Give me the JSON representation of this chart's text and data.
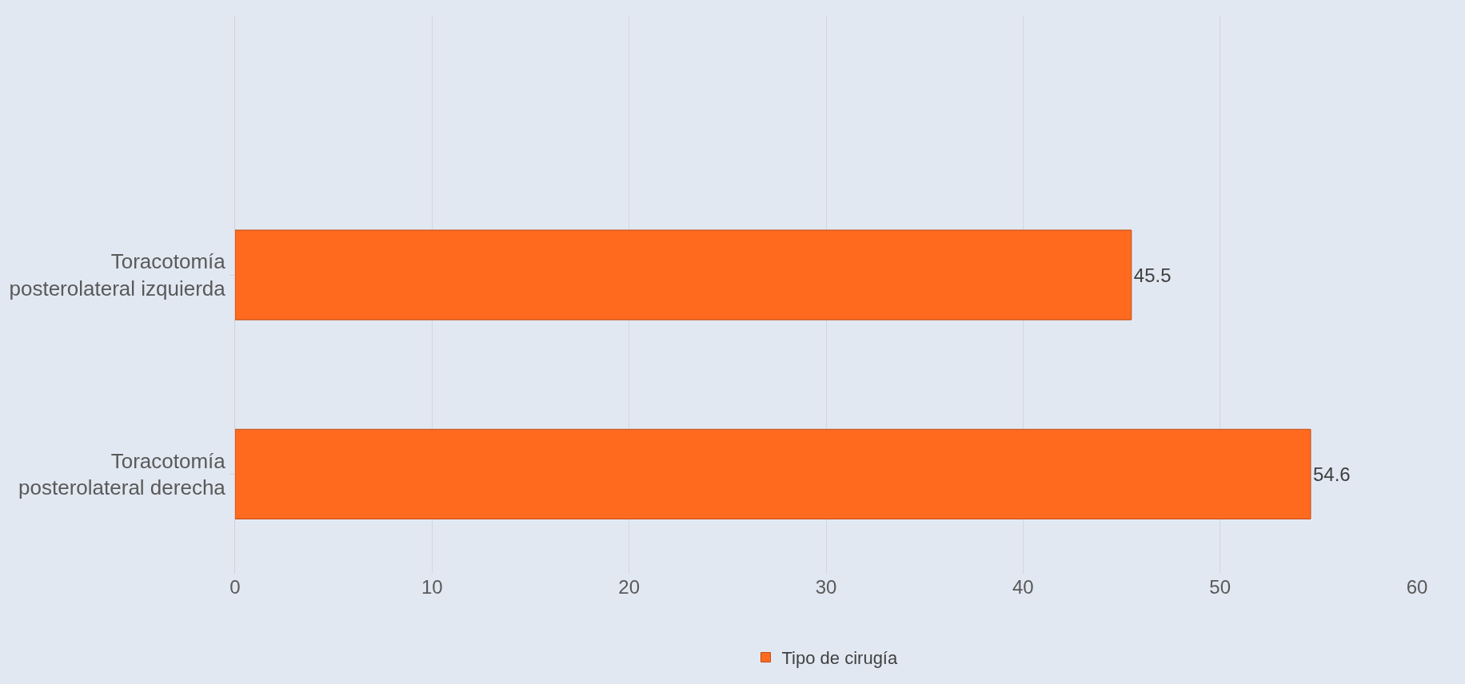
{
  "chart_data": {
    "type": "bar",
    "orientation": "horizontal",
    "categories": [
      "Toracotomía posterolateral izquierda",
      "Toracotomía posterolateral derecha"
    ],
    "series": [
      {
        "name": "Tipo de cirugía",
        "color": "#ff6a1f",
        "values": [
          45.5,
          54.6
        ]
      }
    ],
    "xlim": [
      0,
      60
    ],
    "xticks": [
      0,
      10,
      20,
      30,
      40,
      50,
      60
    ],
    "grid": "x",
    "legend": "bottom",
    "data_labels": true
  }
}
